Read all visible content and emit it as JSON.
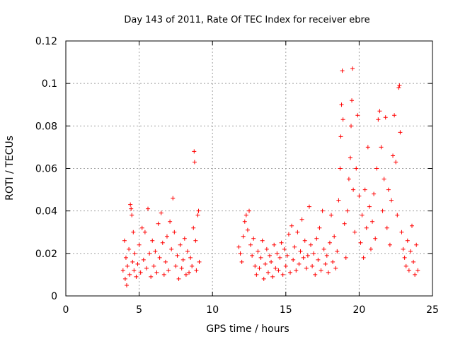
{
  "chart_data": {
    "type": "scatter",
    "title": "Day 143 of 2011, Rate Of TEC Index for receiver ebre",
    "xlabel": "GPS time / hours",
    "ylabel": "ROTI / TECUs",
    "xlim": [
      0,
      25
    ],
    "ylim": [
      0,
      0.12
    ],
    "x_ticks": [
      0,
      5,
      10,
      15,
      20,
      25
    ],
    "x_tick_labels": [
      "0",
      "5",
      "10",
      "15",
      "20",
      "25"
    ],
    "y_ticks": [
      0,
      0.02,
      0.04,
      0.06,
      0.08,
      0.1,
      0.12
    ],
    "y_tick_labels": [
      "0",
      "0.02",
      "0.04",
      "0.06",
      "0.08",
      "0.1",
      "0.12"
    ],
    "grid": true,
    "marker": "+",
    "color": "#ff0000",
    "series": [
      {
        "points": [
          [
            3.9,
            0.012
          ],
          [
            4.0,
            0.026
          ],
          [
            4.05,
            0.008
          ],
          [
            4.1,
            0.018
          ],
          [
            4.15,
            0.005
          ],
          [
            4.2,
            0.014
          ],
          [
            4.3,
            0.022
          ],
          [
            4.35,
            0.01
          ],
          [
            4.4,
            0.043
          ],
          [
            4.45,
            0.041
          ],
          [
            4.5,
            0.038
          ],
          [
            4.55,
            0.016
          ],
          [
            4.6,
            0.03
          ],
          [
            4.65,
            0.012
          ],
          [
            4.7,
            0.02
          ],
          [
            4.8,
            0.009
          ],
          [
            4.9,
            0.015
          ],
          [
            5.0,
            0.024
          ],
          [
            5.1,
            0.011
          ],
          [
            5.2,
            0.032
          ],
          [
            5.3,
            0.017
          ],
          [
            5.4,
            0.03
          ],
          [
            5.5,
            0.013
          ],
          [
            5.6,
            0.041
          ],
          [
            5.7,
            0.02
          ],
          [
            5.8,
            0.009
          ],
          [
            5.9,
            0.026
          ],
          [
            6.0,
            0.014
          ],
          [
            6.1,
            0.021
          ],
          [
            6.2,
            0.011
          ],
          [
            6.3,
            0.034
          ],
          [
            6.4,
            0.018
          ],
          [
            6.5,
            0.039
          ],
          [
            6.6,
            0.025
          ],
          [
            6.7,
            0.01
          ],
          [
            6.8,
            0.016
          ],
          [
            6.9,
            0.028
          ],
          [
            7.0,
            0.012
          ],
          [
            7.1,
            0.035
          ],
          [
            7.2,
            0.022
          ],
          [
            7.3,
            0.046
          ],
          [
            7.4,
            0.03
          ],
          [
            7.5,
            0.014
          ],
          [
            7.6,
            0.019
          ],
          [
            7.7,
            0.008
          ],
          [
            7.8,
            0.024
          ],
          [
            7.9,
            0.013
          ],
          [
            8.0,
            0.017
          ],
          [
            8.1,
            0.027
          ],
          [
            8.2,
            0.01
          ],
          [
            8.3,
            0.021
          ],
          [
            8.4,
            0.011
          ],
          [
            8.5,
            0.018
          ],
          [
            8.6,
            0.014
          ],
          [
            8.7,
            0.032
          ],
          [
            8.75,
            0.068
          ],
          [
            8.78,
            0.063
          ],
          [
            8.85,
            0.026
          ],
          [
            8.9,
            0.012
          ],
          [
            9.0,
            0.038
          ],
          [
            9.05,
            0.04
          ],
          [
            9.1,
            0.016
          ],
          [
            11.8,
            0.023
          ],
          [
            11.9,
            0.02
          ],
          [
            12.0,
            0.016
          ],
          [
            12.1,
            0.028
          ],
          [
            12.2,
            0.035
          ],
          [
            12.3,
            0.038
          ],
          [
            12.4,
            0.031
          ],
          [
            12.5,
            0.04
          ],
          [
            12.6,
            0.024
          ],
          [
            12.7,
            0.019
          ],
          [
            12.8,
            0.027
          ],
          [
            12.9,
            0.014
          ],
          [
            13.0,
            0.01
          ],
          [
            13.1,
            0.021
          ],
          [
            13.2,
            0.013
          ],
          [
            13.3,
            0.018
          ],
          [
            13.4,
            0.026
          ],
          [
            13.5,
            0.008
          ],
          [
            13.6,
            0.015
          ],
          [
            13.7,
            0.022
          ],
          [
            13.8,
            0.011
          ],
          [
            13.9,
            0.019
          ],
          [
            14.0,
            0.016
          ],
          [
            14.1,
            0.009
          ],
          [
            14.2,
            0.024
          ],
          [
            14.3,
            0.013
          ],
          [
            14.4,
            0.02
          ],
          [
            14.5,
            0.012
          ],
          [
            14.6,
            0.018
          ],
          [
            14.7,
            0.025
          ],
          [
            14.8,
            0.01
          ],
          [
            14.9,
            0.022
          ],
          [
            15.0,
            0.014
          ],
          [
            15.1,
            0.019
          ],
          [
            15.2,
            0.029
          ],
          [
            15.3,
            0.011
          ],
          [
            15.4,
            0.033
          ],
          [
            15.5,
            0.017
          ],
          [
            15.6,
            0.023
          ],
          [
            15.7,
            0.012
          ],
          [
            15.8,
            0.03
          ],
          [
            15.9,
            0.015
          ],
          [
            16.0,
            0.021
          ],
          [
            16.1,
            0.036
          ],
          [
            16.2,
            0.018
          ],
          [
            16.3,
            0.026
          ],
          [
            16.4,
            0.013
          ],
          [
            16.5,
            0.019
          ],
          [
            16.6,
            0.042
          ],
          [
            16.7,
            0.024
          ],
          [
            16.8,
            0.014
          ],
          [
            16.9,
            0.02
          ],
          [
            17.0,
            0.01
          ],
          [
            17.1,
            0.027
          ],
          [
            17.2,
            0.017
          ],
          [
            17.3,
            0.032
          ],
          [
            17.4,
            0.012
          ],
          [
            17.5,
            0.04
          ],
          [
            17.6,
            0.022
          ],
          [
            17.7,
            0.015
          ],
          [
            17.8,
            0.019
          ],
          [
            17.9,
            0.011
          ],
          [
            18.0,
            0.025
          ],
          [
            18.1,
            0.038
          ],
          [
            18.2,
            0.016
          ],
          [
            18.3,
            0.028
          ],
          [
            18.4,
            0.013
          ],
          [
            18.5,
            0.021
          ],
          [
            18.6,
            0.045
          ],
          [
            18.7,
            0.06
          ],
          [
            18.75,
            0.075
          ],
          [
            18.8,
            0.09
          ],
          [
            18.85,
            0.106
          ],
          [
            18.9,
            0.083
          ],
          [
            19.0,
            0.034
          ],
          [
            19.1,
            0.018
          ],
          [
            19.2,
            0.04
          ],
          [
            19.3,
            0.055
          ],
          [
            19.4,
            0.065
          ],
          [
            19.45,
            0.08
          ],
          [
            19.5,
            0.092
          ],
          [
            19.55,
            0.107
          ],
          [
            19.6,
            0.05
          ],
          [
            19.7,
            0.03
          ],
          [
            19.8,
            0.06
          ],
          [
            19.9,
            0.085
          ],
          [
            20.0,
            0.047
          ],
          [
            20.1,
            0.025
          ],
          [
            20.2,
            0.038
          ],
          [
            20.3,
            0.018
          ],
          [
            20.4,
            0.05
          ],
          [
            20.5,
            0.032
          ],
          [
            20.6,
            0.07
          ],
          [
            20.7,
            0.042
          ],
          [
            20.8,
            0.022
          ],
          [
            20.9,
            0.035
          ],
          [
            21.0,
            0.048
          ],
          [
            21.1,
            0.027
          ],
          [
            21.2,
            0.06
          ],
          [
            21.3,
            0.083
          ],
          [
            21.4,
            0.087
          ],
          [
            21.5,
            0.07
          ],
          [
            21.6,
            0.04
          ],
          [
            21.7,
            0.055
          ],
          [
            21.8,
            0.084
          ],
          [
            21.9,
            0.032
          ],
          [
            22.0,
            0.05
          ],
          [
            22.1,
            0.024
          ],
          [
            22.2,
            0.045
          ],
          [
            22.3,
            0.066
          ],
          [
            22.4,
            0.085
          ],
          [
            22.5,
            0.063
          ],
          [
            22.6,
            0.038
          ],
          [
            22.7,
            0.098
          ],
          [
            22.75,
            0.099
          ],
          [
            22.8,
            0.077
          ],
          [
            22.9,
            0.03
          ],
          [
            23.0,
            0.022
          ],
          [
            23.1,
            0.018
          ],
          [
            23.2,
            0.014
          ],
          [
            23.3,
            0.026
          ],
          [
            23.4,
            0.012
          ],
          [
            23.5,
            0.021
          ],
          [
            23.6,
            0.033
          ],
          [
            23.7,
            0.016
          ],
          [
            23.8,
            0.01
          ],
          [
            23.9,
            0.024
          ],
          [
            24.0,
            0.012
          ]
        ]
      }
    ]
  }
}
